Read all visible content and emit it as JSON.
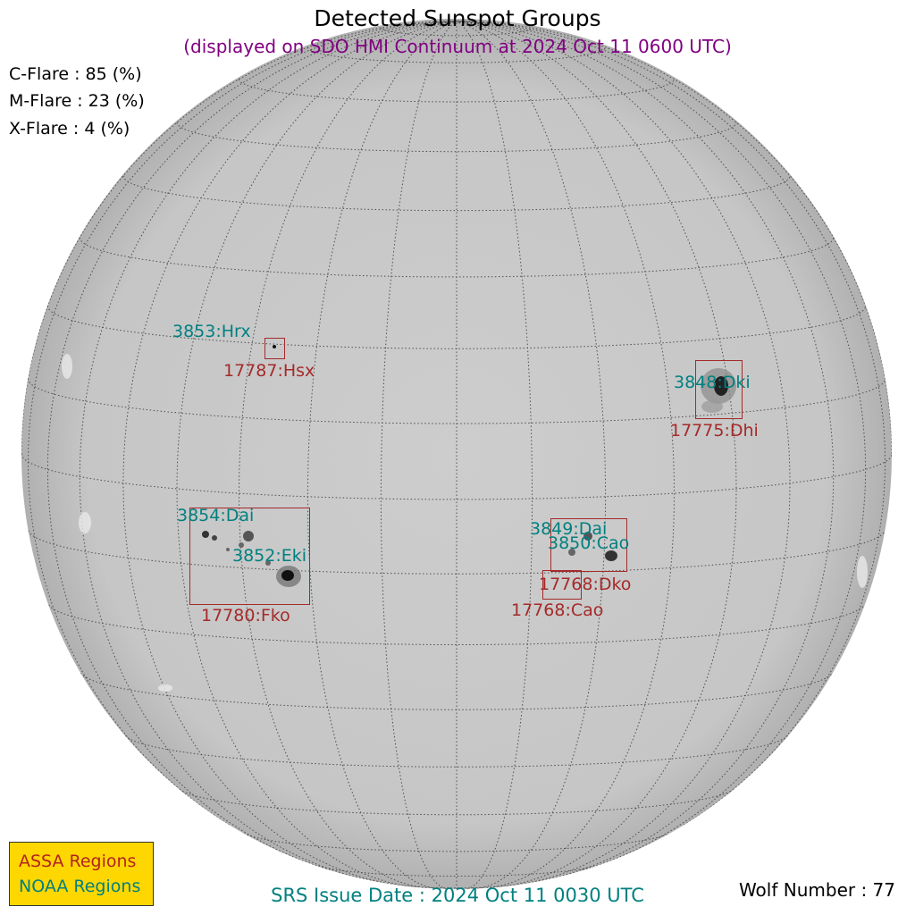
{
  "header": {
    "title": "Detected Sunspot Groups",
    "subtitle": "(displayed on SDO HMI Continuum at 2024 Oct 11 0600 UTC)"
  },
  "flare_probabilities": {
    "c_flare": "C-Flare : 85 (%)",
    "m_flare": "M-Flare : 23 (%)",
    "x_flare": "X-Flare :  4 (%)"
  },
  "noaa_regions": {
    "r3853": "3853:Hrx",
    "r3848": "3848:Dki",
    "r3854": "3854:Dai",
    "r3852": "3852:Eki",
    "r3849": "3849:Dai",
    "r3850": "3850:Cao"
  },
  "assa_regions": {
    "r17787": "17787:Hsx",
    "r17775": "17775:Dhi",
    "r17780": "17780:Fko",
    "r17768_dko": "17768:Dko",
    "r17768_cao": "17768:Cao"
  },
  "legend": {
    "assa_label": "ASSA Regions",
    "noaa_label": "NOAA Regions"
  },
  "footer": {
    "issue_date": "SRS Issue Date : 2024 Oct 11 0030 UTC",
    "wolf_number": "Wolf Number : 77"
  },
  "colors": {
    "noaa": "#008080",
    "assa": "#a52a2a",
    "subtitle": "#800080",
    "legend_bg": "#ffd700",
    "disk": "#c9c9c9"
  }
}
